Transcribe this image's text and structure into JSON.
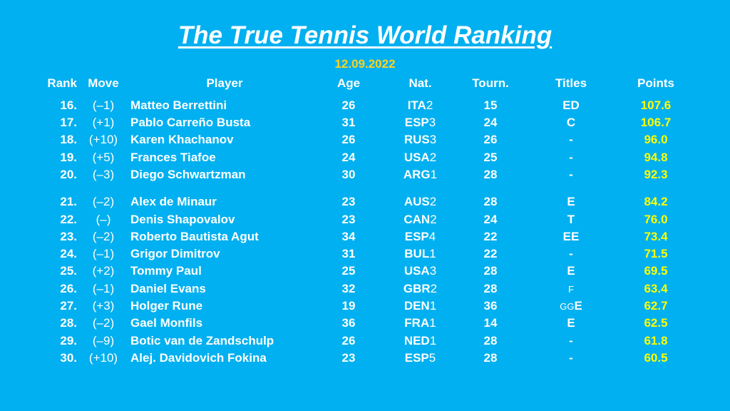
{
  "title": "The True Tennis World Ranking",
  "date": "12.09.2022",
  "headers": {
    "rank": "Rank",
    "move": "Move",
    "player": "Player",
    "age": "Age",
    "nat": "Nat.",
    "tourn": "Tourn.",
    "titles": "Titles",
    "points": "Points"
  },
  "rows": [
    {
      "rank": "16.",
      "move": "(–1)",
      "player": "Matteo Berrettini",
      "age": "26",
      "nat": "ITA",
      "nat_num": "2",
      "tourn": "15",
      "titles": "ED",
      "titles_small": "",
      "points": "107.6"
    },
    {
      "rank": "17.",
      "move": "(+1)",
      "player": "Pablo Carreño Busta",
      "age": "31",
      "nat": "ESP",
      "nat_num": "3",
      "tourn": "24",
      "titles": "C",
      "titles_small": "",
      "points": "106.7"
    },
    {
      "rank": "18.",
      "move": "(+10)",
      "player": "Karen Khachanov",
      "age": "26",
      "nat": "RUS",
      "nat_num": "3",
      "tourn": "26",
      "titles": "-",
      "titles_small": "",
      "points": "96.0"
    },
    {
      "rank": "19.",
      "move": "(+5)",
      "player": "Frances Tiafoe",
      "age": "24",
      "nat": "USA",
      "nat_num": "2",
      "tourn": "25",
      "titles": "-",
      "titles_small": "",
      "points": "94.8"
    },
    {
      "rank": "20.",
      "move": "(–3)",
      "player": "Diego Schwartzman",
      "age": "30",
      "nat": "ARG",
      "nat_num": "1",
      "tourn": "28",
      "titles": "-",
      "titles_small": "",
      "points": "92.3"
    },
    {
      "rank": "21.",
      "move": "(–2)",
      "player": "Alex de Minaur",
      "age": "23",
      "nat": "AUS",
      "nat_num": "2",
      "tourn": "28",
      "titles": "E",
      "titles_small": "",
      "points": "84.2"
    },
    {
      "rank": "22.",
      "move": "(–)",
      "player": "Denis Shapovalov",
      "age": "23",
      "nat": "CAN",
      "nat_num": "2",
      "tourn": "24",
      "titles": "T",
      "titles_small": "",
      "points": "76.0"
    },
    {
      "rank": "23.",
      "move": "(–2)",
      "player": "Roberto Bautista Agut",
      "age": "34",
      "nat": "ESP",
      "nat_num": "4",
      "tourn": "22",
      "titles": "EE",
      "titles_small": "",
      "points": "73.4"
    },
    {
      "rank": "24.",
      "move": "(–1)",
      "player": "Grigor Dimitrov",
      "age": "31",
      "nat": "BUL",
      "nat_num": "1",
      "tourn": "22",
      "titles": "-",
      "titles_small": "",
      "points": "71.5"
    },
    {
      "rank": "25.",
      "move": "(+2)",
      "player": "Tommy Paul",
      "age": "25",
      "nat": "USA",
      "nat_num": "3",
      "tourn": "28",
      "titles": "E",
      "titles_small": "",
      "points": "69.5"
    },
    {
      "rank": "26.",
      "move": "(–1)",
      "player": "Daniel Evans",
      "age": "32",
      "nat": "GBR",
      "nat_num": "2",
      "tourn": "28",
      "titles": "",
      "titles_small": "F",
      "points": "63.4"
    },
    {
      "rank": "27.",
      "move": "(+3)",
      "player": "Holger Rune",
      "age": "19",
      "nat": "DEN",
      "nat_num": "1",
      "tourn": "36",
      "titles": "E",
      "titles_small": "GG",
      "points": "62.7"
    },
    {
      "rank": "28.",
      "move": "(–2)",
      "player": "Gael Monfils",
      "age": "36",
      "nat": "FRA",
      "nat_num": "1",
      "tourn": "14",
      "titles": "E",
      "titles_small": "",
      "points": "62.5"
    },
    {
      "rank": "29.",
      "move": "(–9)",
      "player": "Botic van de Zandschulp",
      "age": "26",
      "nat": "NED",
      "nat_num": "1",
      "tourn": "28",
      "titles": "-",
      "titles_small": "",
      "points": "61.8"
    },
    {
      "rank": "30.",
      "move": "(+10)",
      "player": "Alej. Davidovich Fokina",
      "age": "23",
      "nat": "ESP",
      "nat_num": "5",
      "tourn": "28",
      "titles": "-",
      "titles_small": "",
      "points": "60.5"
    }
  ]
}
